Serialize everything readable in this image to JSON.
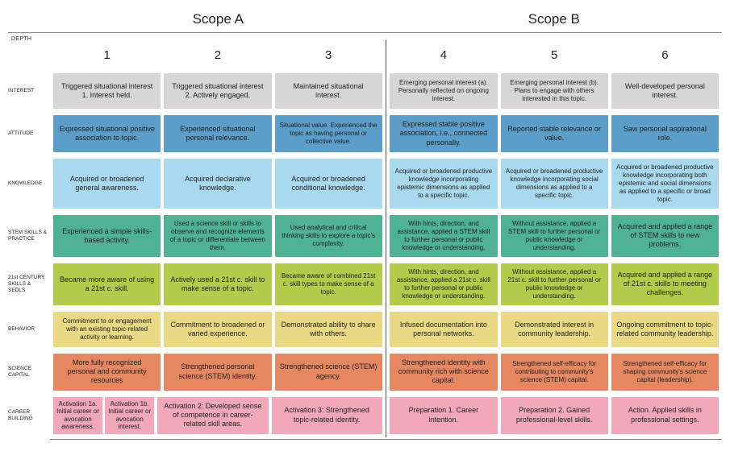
{
  "scope": {
    "a": "Scope A",
    "b": "Scope B"
  },
  "depth_label": "DEPTH",
  "columns": [
    "1",
    "2",
    "3",
    "4",
    "5",
    "6"
  ],
  "colors": {
    "interest": "#d6d6d6",
    "attitude": "#5a9ec9",
    "knowledge": "#a9d9ef",
    "stem": "#4fb393",
    "c21": "#b2cb4a",
    "behavior": "#e9d884",
    "capital": "#e58862",
    "career": "#f1a8b9"
  },
  "rows": [
    {
      "key": "interest",
      "label": "INTEREST",
      "cells": [
        "Triggered situational interest 1. Interest held.",
        "Triggered situational interest 2. Actively engaged.",
        "Maintained situational interest.",
        "Emerging personal interest (a). Personally reflected on ongoing interest.",
        "Emerging personal interest (b). Plans to engage with others interested in this topic.",
        "Well-developed personal interest."
      ],
      "small": [
        false,
        false,
        false,
        true,
        true,
        false
      ]
    },
    {
      "key": "attitude",
      "label": "ATTITUDE",
      "cells": [
        "Expressed situational positive association to topic.",
        "Experienced situational personal relevance.",
        "Situational value. Experienced the topic as having personal or collective value.",
        "Expressed stable positive association, i.e., connected personally.",
        "Reported stable relevance or value.",
        "Saw personal aspirational role."
      ],
      "small": [
        false,
        false,
        true,
        false,
        false,
        false
      ]
    },
    {
      "key": "knowledge",
      "label": "KNOWLEDGE",
      "cells": [
        "Acquired or broadened general awareness.",
        "Acquired declarative knowledge.",
        "Acquired or broadened conditional knowledge.",
        "Acquired or broadened productive knowledge incorporating epistemic dimensions as applied to a specific topic.",
        "Acquired or broadened productive knowledge incorporating social dimensions as applied to a specific topic.",
        "Acquired or broadened productive knowledge incorporating both epistemic and social dimensions as applied to a specific or broad topic."
      ],
      "small": [
        false,
        false,
        false,
        true,
        true,
        true
      ]
    },
    {
      "key": "stem",
      "label": "STEM SKILLS & PRACTICE",
      "cells": [
        "Experienced a simple skills-based activity.",
        "Used a science skill or skills to observe and recognize elements of a topic or differentiate between them.",
        "Used analytical and critical thinking skills to explore a topic's complexity.",
        "With hints, direction, and assistance, applied a STEM skill to further personal or public knowledge or understanding.",
        "Without assistance, applied a STEM skill to further personal or public knowledge or understanding.",
        "Acquired and applied a range of STEM skills to new problems."
      ],
      "small": [
        false,
        true,
        true,
        true,
        true,
        false
      ]
    },
    {
      "key": "c21",
      "label": "21st CENTURY SKILLS & SEDLS",
      "cells": [
        "Became more aware of using a 21st c. skill.",
        "Actively used a 21st c. skill to make sense of a topic.",
        "Became aware of combined 21st c. skill types to make sense of a topic.",
        "With hints, direction, and assistance, applied a 21st c. skill to further personal or public knowledge or understanding.",
        "Without assistance, applied a 21st c. skill to further personal or public knowledge or understanding.",
        "Acquired and applied a range of 21st c. skills to meeting challenges."
      ],
      "small": [
        false,
        false,
        true,
        true,
        true,
        false
      ]
    },
    {
      "key": "behavior",
      "label": "BEHAVIOR",
      "cells": [
        "Commitment to or engagement with an existing topic-related activity or learning.",
        "Commitment to broadened or varied experience.",
        "Demonstrated ability to share with others.",
        "Infused documentation into personal networks.",
        "Demonstrated interest in community leadership.",
        "Ongoing commitment to topic-related community leadership."
      ],
      "small": [
        true,
        false,
        false,
        false,
        false,
        false
      ]
    },
    {
      "key": "capital",
      "label": "SCIENCE CAPITAL",
      "cells": [
        "More fully recognized personal and community resources",
        "Strengthened personal science (STEM) identity.",
        "Strengthened science (STEM) agency.",
        "Strengthened identity with community rich with science capital.",
        "Strengthened self-efficacy for contributing to community's science (STEM) capital.",
        "Strengthened self-efficacy for shaping community's science capital (leadership)."
      ],
      "small": [
        false,
        false,
        false,
        false,
        true,
        true
      ]
    },
    {
      "key": "career",
      "label": "CAREER BUILDING",
      "split_first": {
        "a": "Activation 1a. Initial career or avocation awareness.",
        "b": "Activation 1b. Initial career or avocation interest."
      },
      "cells": [
        "",
        "Activation 2: Developed sense of competence in career-related skill areas.",
        "Activation 3: Strengthened topic-related identity.",
        "Preparation 1. Career intention.",
        "Preparation 2. Gained professional-level skills.",
        "Action. Applied skills in professional settings."
      ],
      "small": [
        false,
        false,
        false,
        false,
        false,
        false
      ]
    }
  ]
}
